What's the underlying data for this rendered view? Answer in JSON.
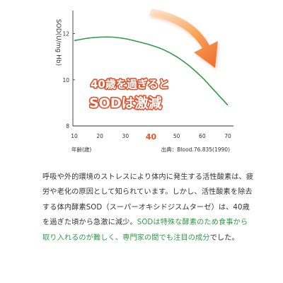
{
  "chart_data": {
    "type": "line",
    "ylabel": "SOD(U/mg Hb)",
    "xlabel": "年齢(歳)",
    "source": "出典：Blood.76.835(1990)",
    "x_ticks": [
      "10",
      "20",
      "30",
      "40",
      "50",
      "60",
      "70"
    ],
    "y_ticks": [
      "8",
      "10",
      "12"
    ],
    "xlim": [
      10,
      70
    ],
    "ylim": [
      8,
      13
    ],
    "highlight_tick": "40",
    "grid": false,
    "annotation": [
      "40歳を過ぎると",
      "SODは激減"
    ],
    "line_color": "#2f9a45",
    "series": [
      {
        "x": [
          10,
          15,
          20,
          25,
          30,
          35,
          40,
          45,
          50,
          55,
          60,
          65,
          70
        ],
        "y": [
          11.7,
          11.8,
          11.85,
          11.85,
          11.78,
          11.65,
          11.5,
          11.3,
          11.0,
          10.6,
          10.1,
          9.5,
          8.9
        ]
      }
    ]
  },
  "text": {
    "segments": [
      {
        "text": "呼吸や外的環境のストレスにより体内に発生する活性酸素は、疲労や老化の原因として知られています。しかし、活性酸素を除去する体内酵素SOD（スーパーオキシドジスムターゼ）は、40歳を過ぎた頃から急激に減少。",
        "highlight": false
      },
      {
        "text": "SODは特殊な酵素のため食事から取り入れるのが難しく、専門家の間でも注目の成分",
        "highlight": true
      },
      {
        "text": "でした。",
        "highlight": false
      }
    ]
  },
  "colors": {
    "accent": "#e8522a",
    "line": "#2f9a45",
    "highlight_text": "#2e9b45"
  }
}
